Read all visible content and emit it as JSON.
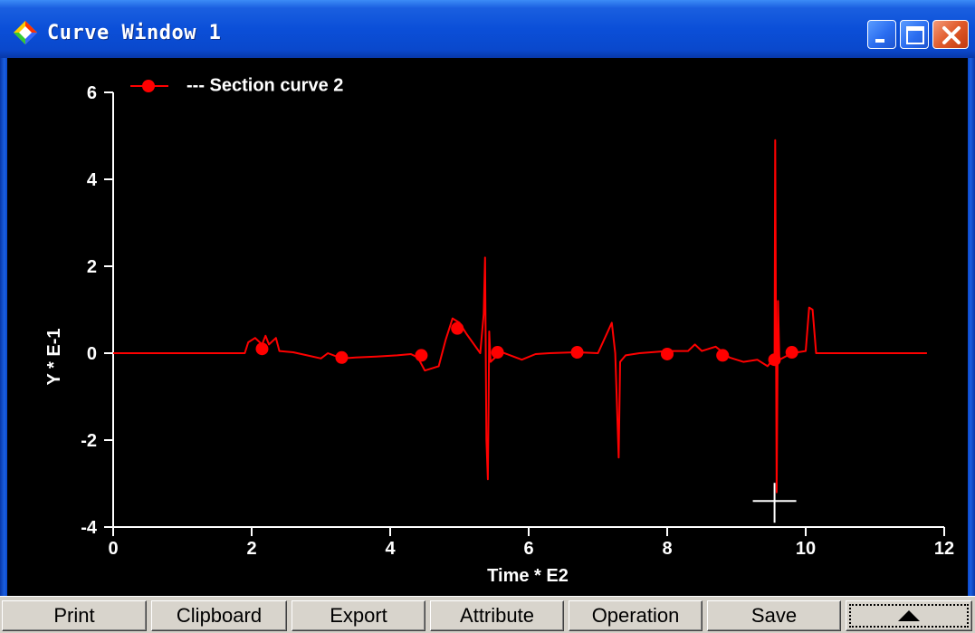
{
  "window": {
    "title": "Curve Window 1"
  },
  "title_buttons": [
    "minimize-button",
    "maximize-button",
    "close-button"
  ],
  "colors": {
    "curve": "#ff0000",
    "background": "#000000",
    "axis": "#ffffff",
    "titlebar": "#0a48cc"
  },
  "chart_data": {
    "type": "line",
    "xlabel": "Time * E2",
    "ylabel": "Y * E-1",
    "xlim": [
      0,
      12
    ],
    "ylim": [
      -4,
      6
    ],
    "xticks": [
      "0",
      "2",
      "4",
      "6",
      "8",
      "10",
      "12"
    ],
    "yticks": [
      "-4",
      "-2",
      "0",
      "2",
      "4",
      "6"
    ],
    "legend": {
      "placement": "top-left",
      "label": "--- Section curve 2"
    },
    "series": [
      {
        "name": "Section curve 2",
        "line": [
          [
            0,
            0
          ],
          [
            1.9,
            0
          ],
          [
            1.95,
            0.25
          ],
          [
            2.05,
            0.35
          ],
          [
            2.15,
            0.2
          ],
          [
            2.2,
            0.4
          ],
          [
            2.25,
            0.2
          ],
          [
            2.35,
            0.35
          ],
          [
            2.4,
            0.05
          ],
          [
            2.6,
            0.02
          ],
          [
            2.8,
            -0.05
          ],
          [
            3.0,
            -0.12
          ],
          [
            3.1,
            0
          ],
          [
            3.3,
            -0.12
          ],
          [
            3.5,
            -0.1
          ],
          [
            3.8,
            -0.08
          ],
          [
            4.1,
            -0.05
          ],
          [
            4.3,
            -0.02
          ],
          [
            4.4,
            -0.1
          ],
          [
            4.5,
            -0.4
          ],
          [
            4.6,
            -0.35
          ],
          [
            4.7,
            -0.3
          ],
          [
            4.8,
            0.3
          ],
          [
            4.9,
            0.8
          ],
          [
            5.0,
            0.7
          ],
          [
            5.1,
            0.45
          ],
          [
            5.3,
            0
          ],
          [
            5.35,
            0.9
          ],
          [
            5.37,
            2.2
          ],
          [
            5.39,
            -2.0
          ],
          [
            5.41,
            -2.9
          ],
          [
            5.43,
            0.5
          ],
          [
            5.45,
            -0.2
          ],
          [
            5.6,
            0.03
          ],
          [
            5.9,
            -0.15
          ],
          [
            6.1,
            -0.02
          ],
          [
            6.3,
            0
          ],
          [
            6.7,
            0.02
          ],
          [
            7.0,
            0
          ],
          [
            7.2,
            0.7
          ],
          [
            7.25,
            0
          ],
          [
            7.3,
            -2.4
          ],
          [
            7.32,
            -0.2
          ],
          [
            7.4,
            -0.05
          ],
          [
            7.6,
            0
          ],
          [
            8.0,
            0.05
          ],
          [
            8.3,
            0.05
          ],
          [
            8.4,
            0.2
          ],
          [
            8.5,
            0.05
          ],
          [
            8.7,
            0.15
          ],
          [
            8.9,
            -0.1
          ],
          [
            9.1,
            -0.2
          ],
          [
            9.3,
            -0.15
          ],
          [
            9.45,
            -0.3
          ],
          [
            9.55,
            -0.1
          ],
          [
            9.56,
            4.9
          ],
          [
            9.58,
            -3.2
          ],
          [
            9.6,
            1.2
          ],
          [
            9.62,
            -0.15
          ],
          [
            9.8,
            0
          ],
          [
            10.0,
            0.05
          ],
          [
            10.05,
            1.05
          ],
          [
            10.1,
            1.0
          ],
          [
            10.15,
            0
          ],
          [
            10.6,
            0
          ],
          [
            11.75,
            0
          ]
        ],
        "markers": [
          [
            2.15,
            0.1
          ],
          [
            3.3,
            -0.1
          ],
          [
            4.45,
            -0.05
          ],
          [
            4.97,
            0.57
          ],
          [
            5.55,
            0.02
          ],
          [
            6.7,
            0.02
          ],
          [
            8.0,
            -0.02
          ],
          [
            8.8,
            -0.05
          ],
          [
            9.55,
            -0.15
          ],
          [
            9.8,
            0.02
          ]
        ]
      }
    ],
    "crosshair": {
      "x": 9.55,
      "y": -3.4
    }
  },
  "toolbar": {
    "buttons": [
      {
        "label": "Print"
      },
      {
        "label": "Clipboard"
      },
      {
        "label": "Export"
      },
      {
        "label": "Attribute"
      },
      {
        "label": "Operation"
      },
      {
        "label": "Save"
      }
    ],
    "more_icon": "triangle-up-icon"
  }
}
